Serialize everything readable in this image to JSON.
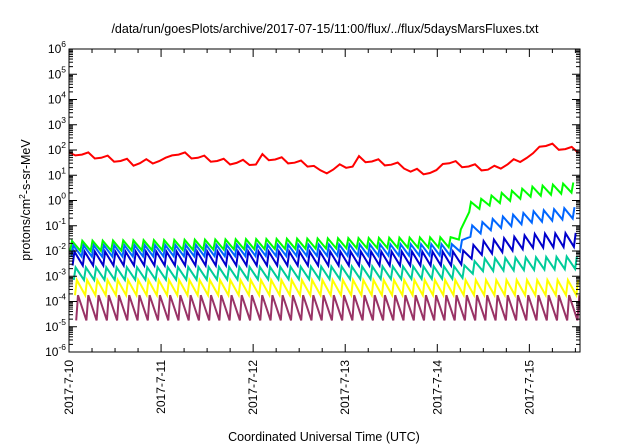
{
  "chart_data": {
    "type": "line",
    "title": "/data/run/goesPlots/archive/2017-07-15/11:00/flux/../flux/5daysMarsFluxes.txt",
    "xlabel": "Coordinated Universal Time (UTC)",
    "ylabel": "protons/cm²-s-sr-MeV",
    "ylabel_parts": {
      "pre": "protons/cm",
      "sup": "2",
      "post": "-s-sr-MeV"
    },
    "yscale": "log",
    "ylim_exp": [
      -6,
      6
    ],
    "y_ticks": [
      {
        "base": "10",
        "exp": "-6"
      },
      {
        "base": "10",
        "exp": "-5"
      },
      {
        "base": "10",
        "exp": "-4"
      },
      {
        "base": "10",
        "exp": "-3"
      },
      {
        "base": "10",
        "exp": "-2"
      },
      {
        "base": "10",
        "exp": "-1"
      },
      {
        "base": "10",
        "exp": "0"
      },
      {
        "base": "10",
        "exp": "1"
      },
      {
        "base": "10",
        "exp": "2"
      },
      {
        "base": "10",
        "exp": "3"
      },
      {
        "base": "10",
        "exp": "4"
      },
      {
        "base": "10",
        "exp": "5"
      },
      {
        "base": "10",
        "exp": "6"
      }
    ],
    "x_ticks": [
      "2017-7-10",
      "2017-7-11",
      "2017-7-12",
      "2017-7-13",
      "2017-7-14",
      "2017-7-15"
    ],
    "xlim_days": [
      0,
      5.55
    ],
    "grid": false,
    "legend": "none",
    "series": [
      {
        "color": "#ff0000",
        "baseline_log": [
          [
            0,
            1.75
          ],
          [
            0.5,
            1.35
          ],
          [
            1,
            1.55
          ],
          [
            2,
            1.45
          ],
          [
            2.3,
            1.0
          ],
          [
            2.6,
            0.9
          ],
          [
            3.0,
            1.35
          ],
          [
            3.6,
            1.15
          ],
          [
            4.0,
            1.05
          ],
          [
            4.6,
            1.2
          ],
          [
            5.0,
            1.7
          ],
          [
            5.55,
            1.95
          ]
        ],
        "peaks": [
          [
            0.05,
            1.85
          ],
          [
            1.1,
            1.85
          ],
          [
            2.08,
            1.7
          ],
          [
            3.08,
            1.65
          ],
          [
            4.05,
            1.5
          ],
          [
            5.08,
            2.2
          ]
        ]
      },
      {
        "color": "#00ff00",
        "baseline_log": [
          [
            0,
            -1.8
          ],
          [
            4.2,
            -1.65
          ],
          [
            4.3,
            -0.3
          ],
          [
            4.6,
            0.05
          ],
          [
            5.0,
            0.35
          ],
          [
            5.55,
            0.55
          ]
        ],
        "amplitude_log": 0.4
      },
      {
        "color": "#0066ff",
        "baseline_log": [
          [
            0,
            -2.0
          ],
          [
            4.2,
            -1.95
          ],
          [
            4.3,
            -1.25
          ],
          [
            4.6,
            -0.9
          ],
          [
            5.0,
            -0.65
          ],
          [
            5.55,
            -0.45
          ]
        ],
        "amplitude_log": 0.45
      },
      {
        "color": "#0000cc",
        "baseline_log": [
          [
            0,
            -2.3
          ],
          [
            4.2,
            -2.3
          ],
          [
            4.4,
            -1.9
          ],
          [
            5.0,
            -1.6
          ],
          [
            5.55,
            -1.55
          ]
        ],
        "amplitude_log": 0.55
      },
      {
        "color": "#00cc99",
        "baseline_log": [
          [
            0,
            -2.9
          ],
          [
            4.2,
            -2.85
          ],
          [
            4.4,
            -2.55
          ],
          [
            5.55,
            -2.45
          ]
        ],
        "amplitude_log": 0.5
      },
      {
        "color": "#ffff00",
        "baseline_log": [
          [
            0,
            -3.45
          ],
          [
            5.55,
            -3.45
          ]
        ],
        "amplitude_log": 0.6
      },
      {
        "color": "#993366",
        "baseline_log": [
          [
            0,
            -4.25
          ],
          [
            5.55,
            -4.25
          ]
        ],
        "amplitude_log": 1.0
      }
    ]
  }
}
